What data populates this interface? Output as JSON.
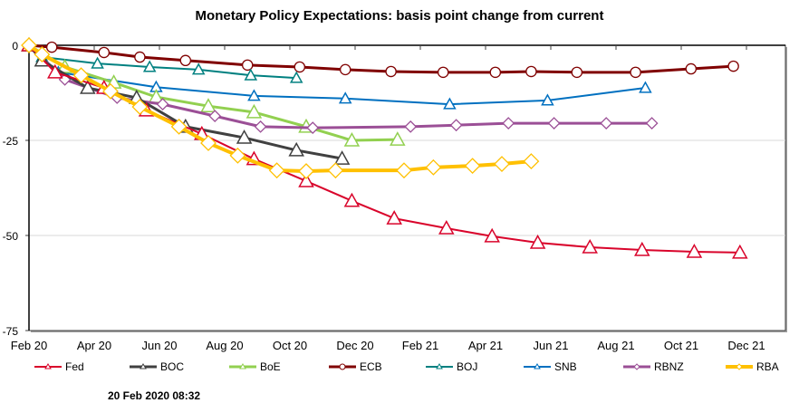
{
  "chart_data": {
    "type": "line",
    "title": "Monetary Policy Expectations: basis point change from current",
    "xlabel": "",
    "ylabel": "",
    "ylim": [
      -75,
      0
    ],
    "xlim_months_from_feb20": [
      0,
      23.3
    ],
    "yticks": [
      "0",
      "-25",
      "-50",
      "-75"
    ],
    "ytick_values": [
      0,
      -25,
      -50,
      -75
    ],
    "xticks": [
      "Feb 20",
      "Apr 20",
      "Jun 20",
      "Aug 20",
      "Oct 20",
      "Dec 20",
      "Feb 21",
      "Apr 21",
      "Jun 21",
      "Aug 21",
      "Oct 21",
      "Dec 21"
    ],
    "xtick_months": [
      0,
      2,
      4,
      6,
      8,
      10,
      12,
      14,
      16,
      18,
      20,
      22
    ],
    "grid": "horizontal",
    "legend_position": "bottom",
    "series": [
      {
        "name": "Fed",
        "color": "#d9042b",
        "marker": "triangle",
        "width": 2,
        "x": [
          0,
          0.8,
          2.3,
          3.6,
          5.3,
          6.9,
          8.5,
          9.9,
          11.2,
          12.8,
          14.2,
          15.6,
          17.2,
          18.8,
          20.4,
          21.8
        ],
        "y": [
          0,
          -7.1,
          -11.2,
          -17.1,
          -23.3,
          -29.9,
          -35.7,
          -40.9,
          -45.5,
          -48.1,
          -50.2,
          -51.9,
          -53.1,
          -53.8,
          -54.3,
          -54.5
        ]
      },
      {
        "name": "BOC",
        "color": "#404040",
        "marker": "triangle",
        "width": 3,
        "x": [
          0,
          0.4,
          1.8,
          3.3,
          4.8,
          6.6,
          8.2,
          9.6
        ],
        "y": [
          0,
          -4.0,
          -11.2,
          -13.8,
          -21.4,
          -24.3,
          -27.6,
          -29.8
        ]
      },
      {
        "name": "BoE",
        "color": "#92d050",
        "marker": "triangle",
        "width": 3,
        "x": [
          0,
          1.1,
          2.6,
          3.9,
          5.5,
          6.9,
          8.5,
          9.9,
          11.3
        ],
        "y": [
          0,
          -5.7,
          -9.8,
          -13.6,
          -16.0,
          -17.6,
          -21.4,
          -25.0,
          -24.8
        ]
      },
      {
        "name": "ECB",
        "color": "#800000",
        "marker": "circle",
        "width": 3,
        "x": [
          0,
          0.7,
          2.3,
          3.4,
          4.8,
          6.7,
          8.3,
          9.7,
          11.1,
          12.7,
          14.3,
          15.4,
          16.8,
          18.6,
          20.3,
          21.6
        ],
        "y": [
          0,
          -0.5,
          -1.9,
          -3.1,
          -4.0,
          -5.2,
          -5.7,
          -6.4,
          -6.9,
          -7.1,
          -7.1,
          -6.9,
          -7.1,
          -7.1,
          -6.2,
          -5.5
        ]
      },
      {
        "name": "BOJ",
        "color": "#008080",
        "marker": "triangle",
        "width": 2,
        "x": [
          0,
          0.4,
          2.1,
          3.7,
          5.2,
          6.8,
          8.2
        ],
        "y": [
          0,
          -3.1,
          -4.8,
          -5.7,
          -6.4,
          -7.9,
          -8.6
        ]
      },
      {
        "name": "SNB",
        "color": "#0070c0",
        "marker": "triangle",
        "width": 2,
        "x": [
          0,
          0.9,
          3.9,
          6.9,
          9.7,
          12.9,
          15.9,
          18.9
        ],
        "y": [
          0,
          -7.1,
          -11.0,
          -13.3,
          -14.0,
          -15.5,
          -14.5,
          -11.2
        ]
      },
      {
        "name": "RBNZ",
        "color": "#9b4f96",
        "marker": "diamond",
        "width": 3,
        "x": [
          0,
          1.1,
          2.7,
          4.1,
          5.7,
          7.1,
          8.7,
          11.7,
          13.1,
          14.7,
          16.1,
          17.7,
          19.1
        ],
        "y": [
          0,
          -9.0,
          -13.8,
          -15.5,
          -18.6,
          -21.4,
          -21.7,
          -21.4,
          -21.0,
          -20.5,
          -20.5,
          -20.5,
          -20.5
        ]
      },
      {
        "name": "RBA",
        "color": "#ffc000",
        "marker": "diamond",
        "width": 4,
        "x": [
          0,
          0.4,
          1.6,
          2.5,
          3.4,
          4.6,
          5.5,
          6.4,
          7.6,
          8.5,
          9.4,
          11.5,
          12.4,
          13.6,
          14.5,
          15.4
        ],
        "y": [
          0,
          -2.4,
          -7.9,
          -12.1,
          -16.2,
          -21.4,
          -25.7,
          -29.0,
          -32.9,
          -33.1,
          -32.9,
          -32.9,
          -32.1,
          -31.7,
          -31.2,
          -30.5
        ]
      }
    ]
  },
  "footer": {
    "timestamp": "20 Feb 2020 08:32"
  }
}
